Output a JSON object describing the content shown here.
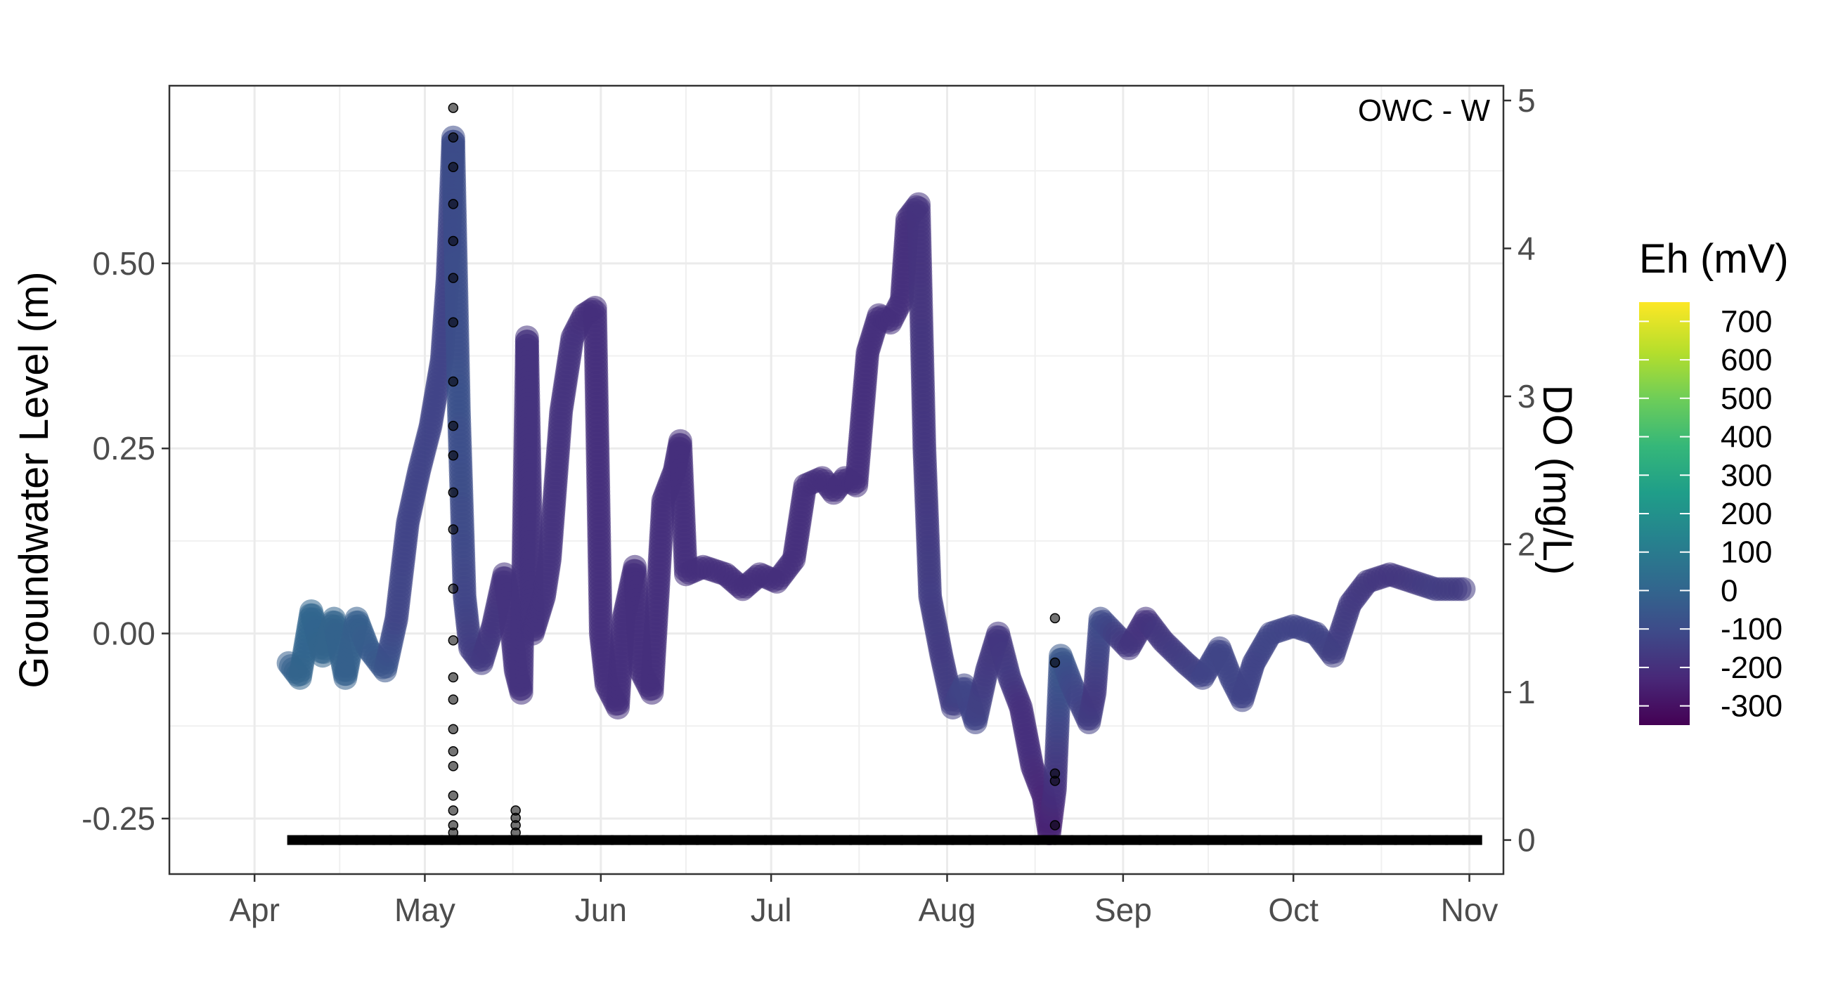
{
  "chart_data": {
    "type": "scatter",
    "annotation": "OWC - W",
    "ylabel": "Groundwater Level (m)",
    "y2label": "DO (mg/L)",
    "x_tick_labels": [
      "Apr",
      "May",
      "Jun",
      "Jul",
      "Aug",
      "Sep",
      "Oct",
      "Nov"
    ],
    "x_tick_dates": [
      "2022-04-01",
      "2022-05-01",
      "2022-06-01",
      "2022-07-01",
      "2022-08-01",
      "2022-09-01",
      "2022-10-01",
      "2022-11-01"
    ],
    "xlim": [
      "2022-03-17",
      "2022-11-07"
    ],
    "y_ticks": [
      -0.25,
      0.0,
      0.25,
      0.5
    ],
    "y_tick_labels": [
      "-0.25",
      "0.00",
      "0.25",
      "0.50"
    ],
    "ylim": [
      -0.325,
      0.74
    ],
    "y2_ticks": [
      0,
      1,
      2,
      3,
      4,
      5
    ],
    "y2_tick_labels": [
      "0",
      "1",
      "2",
      "3",
      "4",
      "5"
    ],
    "y2lim": [
      -0.23,
      5.1
    ],
    "grid": true,
    "legend": {
      "title": "Eh (mV)",
      "position": "right",
      "ticks": [
        700,
        600,
        500,
        400,
        300,
        200,
        100,
        0,
        -100,
        -200,
        -300
      ],
      "tick_labels": [
        "700",
        "600",
        "500",
        "400",
        "300",
        "200",
        "100",
        "0",
        "-100",
        "-200",
        "-300"
      ],
      "range": [
        -350,
        750
      ],
      "palette": [
        "#440154",
        "#482878",
        "#3e4a89",
        "#31688e",
        "#26828e",
        "#1f9e89",
        "#35b779",
        "#6dcd59",
        "#b4de2c",
        "#fde725"
      ]
    },
    "series": [
      {
        "kind": "groundwater_level",
        "points": [
          [
            "2022-04-07",
            -0.04,
            -20
          ],
          [
            "2022-04-09",
            -0.06,
            0
          ],
          [
            "2022-04-11",
            0.03,
            10
          ],
          [
            "2022-04-13",
            -0.03,
            0
          ],
          [
            "2022-04-15",
            0.02,
            0
          ],
          [
            "2022-04-17",
            -0.06,
            -10
          ],
          [
            "2022-04-19",
            0.02,
            -20
          ],
          [
            "2022-04-21",
            -0.02,
            -30
          ],
          [
            "2022-04-24",
            -0.05,
            -60
          ],
          [
            "2022-04-26",
            0.02,
            -120
          ],
          [
            "2022-04-28",
            0.15,
            -130
          ],
          [
            "2022-04-30",
            0.22,
            -130
          ],
          [
            "2022-05-02",
            0.28,
            -130
          ],
          [
            "2022-05-04",
            0.37,
            -130
          ],
          [
            "2022-05-05",
            0.48,
            -130
          ],
          [
            "2022-05-06",
            0.67,
            -100
          ],
          [
            "2022-05-07",
            0.3,
            -80
          ],
          [
            "2022-05-08",
            0.05,
            -120
          ],
          [
            "2022-05-09",
            -0.02,
            -150
          ],
          [
            "2022-05-11",
            -0.04,
            -160
          ],
          [
            "2022-05-13",
            0.01,
            -180
          ],
          [
            "2022-05-15",
            0.08,
            -190
          ],
          [
            "2022-05-16",
            0.03,
            -190
          ],
          [
            "2022-05-17",
            -0.05,
            -190
          ],
          [
            "2022-05-18",
            -0.08,
            -190
          ],
          [
            "2022-05-19",
            0.4,
            -190
          ],
          [
            "2022-05-20",
            0.0,
            -190
          ],
          [
            "2022-05-22",
            0.05,
            -190
          ],
          [
            "2022-05-23",
            0.1,
            -190
          ],
          [
            "2022-05-25",
            0.3,
            -190
          ],
          [
            "2022-05-27",
            0.4,
            -190
          ],
          [
            "2022-05-29",
            0.43,
            -200
          ],
          [
            "2022-05-31",
            0.44,
            -200
          ],
          [
            "2022-06-01",
            0.0,
            -200
          ],
          [
            "2022-06-02",
            -0.07,
            -200
          ],
          [
            "2022-06-04",
            -0.1,
            -200
          ],
          [
            "2022-06-05",
            0.02,
            -200
          ],
          [
            "2022-06-07",
            0.09,
            -200
          ],
          [
            "2022-06-08",
            -0.05,
            -200
          ],
          [
            "2022-06-10",
            -0.08,
            -200
          ],
          [
            "2022-06-12",
            0.18,
            -200
          ],
          [
            "2022-06-14",
            0.22,
            -200
          ],
          [
            "2022-06-15",
            0.26,
            -200
          ],
          [
            "2022-06-16",
            0.08,
            -200
          ],
          [
            "2022-06-19",
            0.09,
            -200
          ],
          [
            "2022-06-23",
            0.08,
            -200
          ],
          [
            "2022-06-26",
            0.06,
            -200
          ],
          [
            "2022-06-29",
            0.08,
            -200
          ],
          [
            "2022-07-02",
            0.07,
            -200
          ],
          [
            "2022-07-05",
            0.1,
            -200
          ],
          [
            "2022-07-07",
            0.2,
            -200
          ],
          [
            "2022-07-10",
            0.21,
            -200
          ],
          [
            "2022-07-12",
            0.19,
            -200
          ],
          [
            "2022-07-14",
            0.21,
            -200
          ],
          [
            "2022-07-16",
            0.2,
            -200
          ],
          [
            "2022-07-18",
            0.38,
            -200
          ],
          [
            "2022-07-20",
            0.43,
            -200
          ],
          [
            "2022-07-22",
            0.42,
            -200
          ],
          [
            "2022-07-24",
            0.45,
            -200
          ],
          [
            "2022-07-25",
            0.56,
            -200
          ],
          [
            "2022-07-27",
            0.58,
            -190
          ],
          [
            "2022-07-28",
            0.25,
            -180
          ],
          [
            "2022-07-29",
            0.05,
            -150
          ],
          [
            "2022-07-31",
            -0.03,
            -160
          ],
          [
            "2022-08-02",
            -0.1,
            -150
          ],
          [
            "2022-08-04",
            -0.07,
            -120
          ],
          [
            "2022-08-06",
            -0.12,
            -130
          ],
          [
            "2022-08-08",
            -0.05,
            -160
          ],
          [
            "2022-08-10",
            0.0,
            -180
          ],
          [
            "2022-08-12",
            -0.06,
            -160
          ],
          [
            "2022-08-14",
            -0.1,
            -200
          ],
          [
            "2022-08-16",
            -0.18,
            -210
          ],
          [
            "2022-08-18",
            -0.22,
            -230
          ],
          [
            "2022-08-19",
            -0.27,
            -250
          ],
          [
            "2022-08-20",
            -0.21,
            -200
          ],
          [
            "2022-08-21",
            -0.03,
            -50
          ],
          [
            "2022-08-23",
            -0.07,
            -110
          ],
          [
            "2022-08-26",
            -0.12,
            -150
          ],
          [
            "2022-08-27",
            -0.08,
            -170
          ],
          [
            "2022-08-28",
            0.02,
            -100
          ],
          [
            "2022-09-02",
            -0.02,
            -180
          ],
          [
            "2022-09-05",
            0.02,
            -190
          ],
          [
            "2022-09-08",
            -0.01,
            -170
          ],
          [
            "2022-09-12",
            -0.04,
            -150
          ],
          [
            "2022-09-15",
            -0.06,
            -130
          ],
          [
            "2022-09-18",
            -0.02,
            -120
          ],
          [
            "2022-09-20",
            -0.06,
            -120
          ],
          [
            "2022-09-22",
            -0.09,
            -130
          ],
          [
            "2022-09-24",
            -0.04,
            -130
          ],
          [
            "2022-09-27",
            0.0,
            -120
          ],
          [
            "2022-10-01",
            0.01,
            -130
          ],
          [
            "2022-10-05",
            0.0,
            -130
          ],
          [
            "2022-10-08",
            -0.03,
            -140
          ],
          [
            "2022-10-11",
            0.04,
            -160
          ],
          [
            "2022-10-14",
            0.07,
            -170
          ],
          [
            "2022-10-18",
            0.08,
            -180
          ],
          [
            "2022-10-22",
            0.07,
            -170
          ],
          [
            "2022-10-26",
            0.06,
            -150
          ],
          [
            "2022-10-31",
            0.06,
            -160
          ]
        ]
      },
      {
        "kind": "dissolved_oxygen",
        "points": [
          [
            "2022-05-06",
            4.95
          ],
          [
            "2022-05-06",
            4.75
          ],
          [
            "2022-05-06",
            4.55
          ],
          [
            "2022-05-06",
            4.3
          ],
          [
            "2022-05-06",
            4.05
          ],
          [
            "2022-05-06",
            3.8
          ],
          [
            "2022-05-06",
            3.5
          ],
          [
            "2022-05-06",
            3.1
          ],
          [
            "2022-05-06",
            2.8
          ],
          [
            "2022-05-06",
            2.6
          ],
          [
            "2022-05-06",
            2.35
          ],
          [
            "2022-05-06",
            2.1
          ],
          [
            "2022-05-06",
            1.7
          ],
          [
            "2022-05-06",
            1.35
          ],
          [
            "2022-05-06",
            1.1
          ],
          [
            "2022-05-06",
            0.95
          ],
          [
            "2022-05-06",
            0.75
          ],
          [
            "2022-05-06",
            0.6
          ],
          [
            "2022-05-06",
            0.5
          ],
          [
            "2022-05-06",
            0.3
          ],
          [
            "2022-05-06",
            0.2
          ],
          [
            "2022-05-06",
            0.1
          ],
          [
            "2022-05-06",
            0.05
          ],
          [
            "2022-05-17",
            0.2
          ],
          [
            "2022-05-17",
            0.15
          ],
          [
            "2022-05-17",
            0.1
          ],
          [
            "2022-05-17",
            0.05
          ],
          [
            "2022-08-20",
            1.5
          ],
          [
            "2022-08-20",
            1.2
          ],
          [
            "2022-08-20",
            0.45
          ],
          [
            "2022-08-20",
            0.4
          ],
          [
            "2022-08-20",
            0.1
          ],
          [
            "2022-04-07",
            0
          ],
          [
            "2022-04-10",
            0
          ],
          [
            "2022-04-13",
            0
          ],
          [
            "2022-04-16",
            0
          ],
          [
            "2022-04-19",
            0
          ],
          [
            "2022-04-22",
            0
          ],
          [
            "2022-04-25",
            0
          ],
          [
            "2022-04-28",
            0
          ],
          [
            "2022-05-01",
            0
          ],
          [
            "2022-05-04",
            0
          ],
          [
            "2022-05-07",
            0
          ],
          [
            "2022-05-10",
            0
          ],
          [
            "2022-05-13",
            0
          ],
          [
            "2022-05-16",
            0
          ],
          [
            "2022-05-19",
            0
          ],
          [
            "2022-05-22",
            0
          ],
          [
            "2022-05-25",
            0
          ],
          [
            "2022-05-28",
            0
          ],
          [
            "2022-05-31",
            0
          ],
          [
            "2022-06-03",
            0
          ],
          [
            "2022-06-06",
            0
          ],
          [
            "2022-06-09",
            0
          ],
          [
            "2022-06-12",
            0
          ],
          [
            "2022-06-15",
            0
          ],
          [
            "2022-06-18",
            0
          ],
          [
            "2022-06-21",
            0
          ],
          [
            "2022-06-24",
            0
          ],
          [
            "2022-06-27",
            0
          ],
          [
            "2022-06-30",
            0
          ],
          [
            "2022-07-03",
            0
          ],
          [
            "2022-07-06",
            0
          ],
          [
            "2022-07-09",
            0
          ],
          [
            "2022-07-12",
            0
          ],
          [
            "2022-07-15",
            0
          ],
          [
            "2022-07-18",
            0
          ],
          [
            "2022-07-21",
            0
          ],
          [
            "2022-07-24",
            0
          ],
          [
            "2022-07-27",
            0
          ],
          [
            "2022-07-30",
            0
          ],
          [
            "2022-08-02",
            0
          ],
          [
            "2022-08-05",
            0
          ],
          [
            "2022-08-08",
            0
          ],
          [
            "2022-08-11",
            0
          ],
          [
            "2022-08-14",
            0
          ],
          [
            "2022-08-17",
            0
          ],
          [
            "2022-08-20",
            0
          ],
          [
            "2022-08-23",
            0
          ],
          [
            "2022-08-26",
            0
          ],
          [
            "2022-08-29",
            0
          ],
          [
            "2022-09-01",
            0
          ],
          [
            "2022-09-04",
            0
          ],
          [
            "2022-09-07",
            0
          ],
          [
            "2022-09-10",
            0
          ],
          [
            "2022-09-13",
            0
          ],
          [
            "2022-09-16",
            0
          ],
          [
            "2022-09-19",
            0
          ],
          [
            "2022-09-22",
            0
          ],
          [
            "2022-09-25",
            0
          ],
          [
            "2022-09-28",
            0
          ],
          [
            "2022-10-01",
            0
          ],
          [
            "2022-10-04",
            0
          ],
          [
            "2022-10-07",
            0
          ],
          [
            "2022-10-10",
            0
          ],
          [
            "2022-10-13",
            0
          ],
          [
            "2022-10-16",
            0
          ],
          [
            "2022-10-19",
            0
          ],
          [
            "2022-10-22",
            0
          ],
          [
            "2022-10-25",
            0
          ],
          [
            "2022-10-28",
            0
          ],
          [
            "2022-10-31",
            0
          ]
        ]
      }
    ]
  }
}
